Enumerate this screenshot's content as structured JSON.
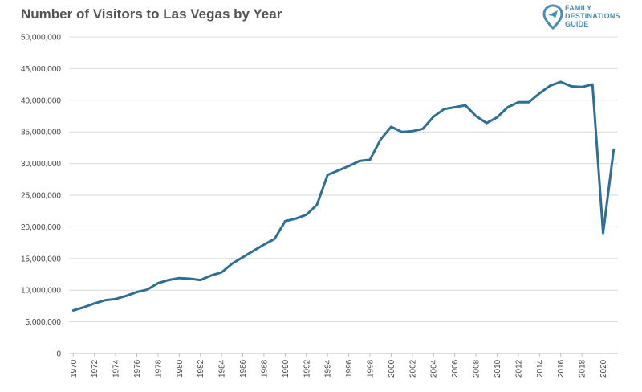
{
  "logo": {
    "lines": [
      "FAMILY",
      "DESTINATIONS",
      "GUIDE"
    ],
    "icon": "map-pin-plane-icon",
    "color": "#4a8db5"
  },
  "chart_data": {
    "type": "line",
    "title": "Number of Visitors to Las Vegas by Year",
    "xlabel": "",
    "ylabel": "",
    "ylim": [
      0,
      50000000
    ],
    "yticks": [
      0,
      5000000,
      10000000,
      15000000,
      20000000,
      25000000,
      30000000,
      35000000,
      40000000,
      45000000,
      50000000
    ],
    "ytick_labels": [
      "0",
      "5,000,000",
      "10,000,000",
      "15,000,000",
      "20,000,000",
      "25,000,000",
      "30,000,000",
      "35,000,000",
      "40,000,000",
      "45,000,000",
      "50,000,000"
    ],
    "xtick_labels": [
      "1970",
      "1972",
      "1974",
      "1976",
      "1978",
      "1980",
      "1982",
      "1984",
      "1986",
      "1988",
      "1990",
      "1992",
      "1994",
      "1996",
      "1998",
      "2000",
      "2002",
      "2004",
      "2006",
      "2008",
      "2010",
      "2012",
      "2014",
      "2016",
      "2018",
      "2020"
    ],
    "grid": true,
    "line_color": "#2e6f96",
    "series": [
      {
        "x": [
          1970,
          1971,
          1972,
          1973,
          1974,
          1975,
          1976,
          1977,
          1978,
          1979,
          1980,
          1981,
          1982,
          1983,
          1984,
          1985,
          1986,
          1987,
          1988,
          1989,
          1990,
          1991,
          1992,
          1993,
          1994,
          1995,
          1996,
          1997,
          1998,
          1999,
          2000,
          2001,
          2002,
          2003,
          2004,
          2005,
          2006,
          2007,
          2008,
          2009,
          2010,
          2011,
          2012,
          2013,
          2014,
          2015,
          2016,
          2017,
          2018,
          2019,
          2020,
          2021
        ],
        "values": [
          6800000,
          7300000,
          7900000,
          8400000,
          8600000,
          9100000,
          9700000,
          10100000,
          11100000,
          11600000,
          11900000,
          11800000,
          11600000,
          12300000,
          12800000,
          14200000,
          15200000,
          16200000,
          17200000,
          18100000,
          20900000,
          21300000,
          21900000,
          23500000,
          28200000,
          28900000,
          29600000,
          30400000,
          30600000,
          33800000,
          35800000,
          35000000,
          35100000,
          35500000,
          37400000,
          38600000,
          38900000,
          39200000,
          37500000,
          36400000,
          37300000,
          38900000,
          39700000,
          39700000,
          41100000,
          42300000,
          42900000,
          42200000,
          42100000,
          42500000,
          19000000,
          32200000
        ]
      }
    ]
  }
}
